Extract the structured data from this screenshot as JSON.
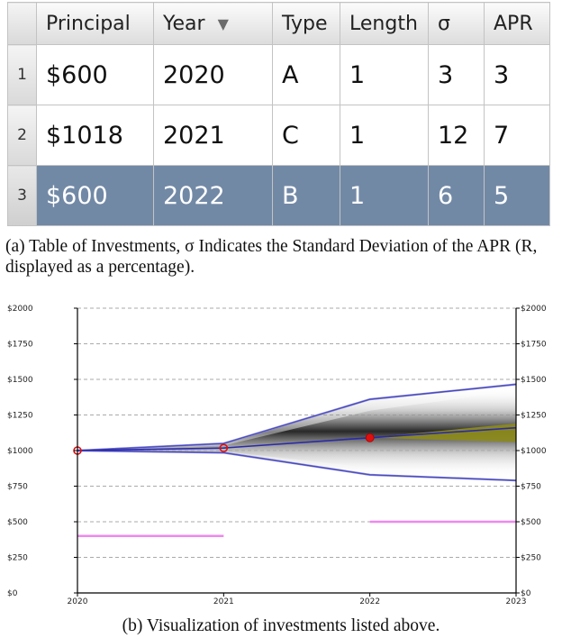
{
  "table": {
    "index_header": "",
    "columns": [
      "Principal",
      "Year",
      "Type",
      "Length",
      "σ",
      "APR"
    ],
    "sort_column": "Year",
    "sort_icon": "triangle-down-icon",
    "selected_row": 3,
    "rows": [
      {
        "index": "1",
        "principal": "$600",
        "year": "2020",
        "type": "A",
        "length": "1",
        "sigma": "3",
        "apr": "3"
      },
      {
        "index": "2",
        "principal": "$1018",
        "year": "2021",
        "type": "C",
        "length": "1",
        "sigma": "12",
        "apr": "7"
      },
      {
        "index": "3",
        "principal": "$600",
        "year": "2022",
        "type": "B",
        "length": "1",
        "sigma": "6",
        "apr": "5"
      }
    ]
  },
  "captions": {
    "a": "(a) Table of Investments, σ Indicates the Standard Deviation of the APR (R, displayed as a percentage).",
    "b": "(b) Visualization of investments listed above."
  },
  "chart_data": {
    "type": "area",
    "title": "",
    "xlabel": "",
    "ylabel": "",
    "x_ticks": [
      "2020",
      "2021",
      "2022",
      "2023"
    ],
    "y_ticks": [
      "$0",
      "$250",
      "$500",
      "$750",
      "$1000",
      "$1250",
      "$1500",
      "$1750",
      "$2000"
    ],
    "y_tick_values": [
      0,
      250,
      500,
      750,
      1000,
      1250,
      1500,
      1750,
      2000
    ],
    "xlim": [
      2020,
      2023
    ],
    "ylim": [
      0,
      2000
    ],
    "grid": "horizontal dashed",
    "colors": {
      "line": "#2a2aaa",
      "band_edge": "#7f7fd8",
      "marker": "#dd1111",
      "cash_line": "#ee88ee",
      "highlight": "#8c8a1e"
    },
    "expected_value": {
      "x": [
        2020,
        2021,
        2022,
        2023
      ],
      "y": [
        1000,
        1018,
        1090,
        1160
      ]
    },
    "upper_band": {
      "x": [
        2020,
        2021,
        2022,
        2023
      ],
      "y": [
        1000,
        1050,
        1360,
        1465
      ]
    },
    "lower_band": {
      "x": [
        2020,
        2021,
        2022,
        2023
      ],
      "y": [
        1000,
        985,
        830,
        790
      ]
    },
    "inner_band_upper": {
      "x": [
        2020,
        2021,
        2022,
        2023
      ],
      "y": [
        1000,
        1035,
        1280,
        1420
      ]
    },
    "inner_band_lower": {
      "x": [
        2020,
        2021,
        2022,
        2023
      ],
      "y": [
        1000,
        995,
        880,
        850
      ]
    },
    "highlight_region": {
      "x": [
        2022,
        2023
      ],
      "upper": [
        1090,
        1190
      ],
      "lower": [
        1090,
        1060
      ]
    },
    "investment_markers": [
      {
        "x": 2020,
        "y": 1000,
        "style": "open"
      },
      {
        "x": 2021,
        "y": 1018,
        "style": "open"
      },
      {
        "x": 2022,
        "y": 1090,
        "style": "filled"
      }
    ],
    "uninvested_segments": [
      {
        "x": [
          2020,
          2021
        ],
        "y": 400
      },
      {
        "x": [
          2022,
          2023
        ],
        "y": 500
      }
    ]
  }
}
